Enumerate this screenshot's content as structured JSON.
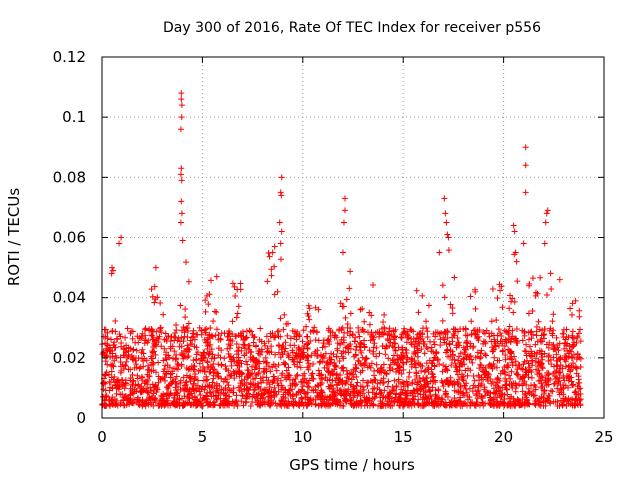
{
  "chart_data": {
    "type": "scatter",
    "title": "Day 300 of 2016, Rate Of TEC Index for receiver p556",
    "xlabel": "GPS time / hours",
    "ylabel": "ROTI / TECUs",
    "xlim": [
      0,
      25
    ],
    "ylim": [
      0,
      0.12
    ],
    "xticks": [
      0,
      5,
      10,
      15,
      20,
      25
    ],
    "yticks": [
      0,
      0.02,
      0.04,
      0.06,
      0.08,
      0.1,
      0.12
    ],
    "xtick_labels": [
      "0",
      "5",
      "10",
      "15",
      "20",
      "25"
    ],
    "ytick_labels": [
      "0",
      "0.02",
      "0.04",
      "0.06",
      "0.08",
      "0.1",
      "0.12"
    ],
    "grid": true,
    "marker": "+",
    "series": [
      {
        "name": "ROTI",
        "color": "#ff0000",
        "dense_band": {
          "x_range": [
            0,
            23.85
          ],
          "y_typical": [
            0.004,
            0.03
          ],
          "y_median": 0.014
        },
        "points": [
          {
            "x": 3.95,
            "y": 0.108
          },
          {
            "x": 3.95,
            "y": 0.106
          },
          {
            "x": 3.98,
            "y": 0.104
          },
          {
            "x": 3.97,
            "y": 0.1
          },
          {
            "x": 3.93,
            "y": 0.096
          },
          {
            "x": 3.95,
            "y": 0.083
          },
          {
            "x": 3.93,
            "y": 0.081
          },
          {
            "x": 3.97,
            "y": 0.079
          },
          {
            "x": 3.95,
            "y": 0.072
          },
          {
            "x": 3.98,
            "y": 0.068
          },
          {
            "x": 3.93,
            "y": 0.065
          },
          {
            "x": 4.02,
            "y": 0.059
          },
          {
            "x": 0.95,
            "y": 0.06
          },
          {
            "x": 0.85,
            "y": 0.058
          },
          {
            "x": 0.5,
            "y": 0.05
          },
          {
            "x": 0.55,
            "y": 0.049
          },
          {
            "x": 0.48,
            "y": 0.048
          },
          {
            "x": 8.95,
            "y": 0.08
          },
          {
            "x": 8.9,
            "y": 0.075
          },
          {
            "x": 8.93,
            "y": 0.074
          },
          {
            "x": 8.85,
            "y": 0.065
          },
          {
            "x": 8.95,
            "y": 0.062
          },
          {
            "x": 8.9,
            "y": 0.058
          },
          {
            "x": 8.6,
            "y": 0.057
          },
          {
            "x": 8.5,
            "y": 0.055
          },
          {
            "x": 12.1,
            "y": 0.073
          },
          {
            "x": 12.1,
            "y": 0.069
          },
          {
            "x": 12.05,
            "y": 0.065
          },
          {
            "x": 12.0,
            "y": 0.055
          },
          {
            "x": 17.05,
            "y": 0.073
          },
          {
            "x": 17.1,
            "y": 0.068
          },
          {
            "x": 17.15,
            "y": 0.065
          },
          {
            "x": 17.2,
            "y": 0.061
          },
          {
            "x": 17.25,
            "y": 0.06
          },
          {
            "x": 16.8,
            "y": 0.055
          },
          {
            "x": 21.1,
            "y": 0.09
          },
          {
            "x": 21.1,
            "y": 0.084
          },
          {
            "x": 21.1,
            "y": 0.075
          },
          {
            "x": 20.5,
            "y": 0.064
          },
          {
            "x": 20.55,
            "y": 0.062
          },
          {
            "x": 21.0,
            "y": 0.058
          },
          {
            "x": 20.6,
            "y": 0.055
          },
          {
            "x": 20.65,
            "y": 0.052
          },
          {
            "x": 22.2,
            "y": 0.069
          },
          {
            "x": 22.15,
            "y": 0.068
          },
          {
            "x": 22.1,
            "y": 0.065
          },
          {
            "x": 22.05,
            "y": 0.058
          },
          {
            "x": 22.8,
            "y": 0.046
          }
        ]
      }
    ]
  }
}
